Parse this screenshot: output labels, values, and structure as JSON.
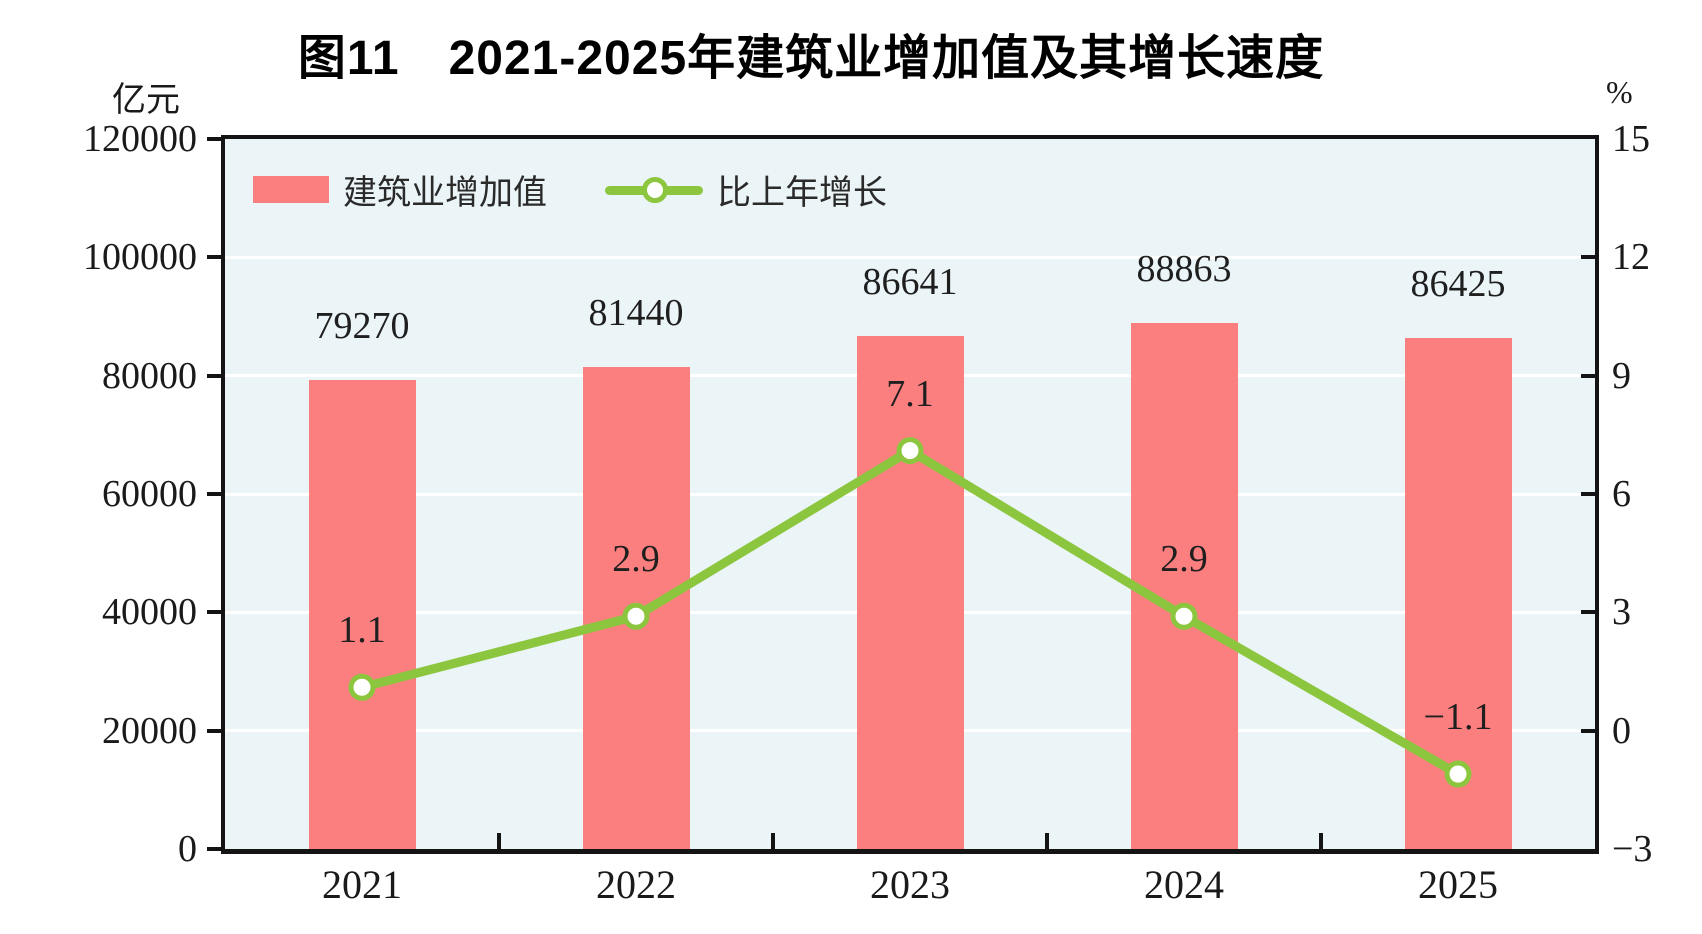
{
  "chart_data": {
    "type": "bar+line combo (dual axis)",
    "title": "图11　2021-2025年建筑业增加值及其增长速度",
    "categories": [
      "2021",
      "2022",
      "2023",
      "2024",
      "2025"
    ],
    "series": [
      {
        "name": "建筑业增加值",
        "chart_type": "bar",
        "axis": "left",
        "color": "#FC7F7F",
        "values": [
          79270,
          81440,
          86641,
          88863,
          86425
        ],
        "labels": [
          "79270",
          "81440",
          "86641",
          "88863",
          "86425"
        ]
      },
      {
        "name": "比上年增长",
        "chart_type": "line",
        "axis": "right",
        "color": "#8CC63E",
        "marker": "circle-white-fill-green-ring",
        "values": [
          1.1,
          2.9,
          7.1,
          2.9,
          -1.1
        ],
        "labels": [
          "1.1",
          "2.9",
          "7.1",
          "2.9",
          "−1.1"
        ]
      }
    ],
    "left_axis": {
      "unit": "亿元",
      "min": 0,
      "max": 120000,
      "tick_step": 20000,
      "tick_labels": [
        "120000",
        "100000",
        "80000",
        "60000",
        "40000",
        "20000",
        "0"
      ]
    },
    "right_axis": {
      "unit": "%",
      "min": -3,
      "max": 15,
      "tick_step": 3,
      "tick_labels": [
        "15",
        "12",
        "9",
        "6",
        "3",
        "0",
        "−3"
      ]
    },
    "grid": "horizontal white gridlines at each left-axis step",
    "legend_position": "inside top-left",
    "plot_background": "#EBF4F7",
    "frame_color": "#141414"
  }
}
